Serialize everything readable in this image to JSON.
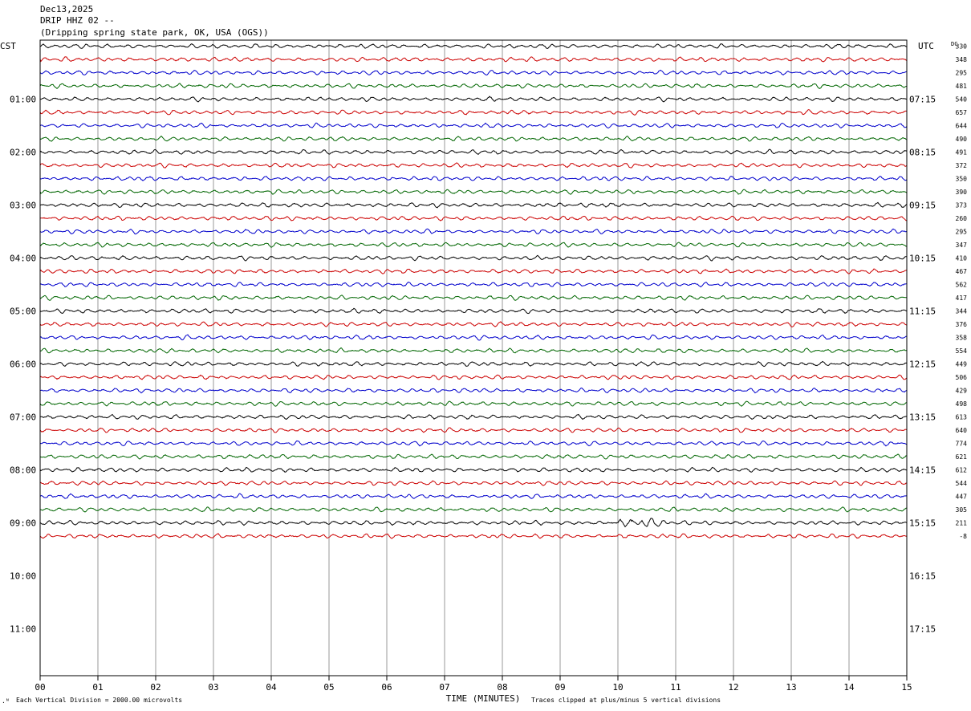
{
  "header": {
    "date": "Dec13,2025",
    "station": "DRIP HHZ 02 --",
    "location": "(Dripping spring state park, OK, USA (OGS))"
  },
  "left_axis_label": "CST",
  "right_axis_label": "UTC",
  "dc_label": "DC",
  "colors": {
    "trace_cycle": [
      "#000000",
      "#cc0000",
      "#0000cc",
      "#006600"
    ],
    "grid": "#999999",
    "frame": "#000000"
  },
  "footer": {
    "vertical_division": "Each Vertical Division = 2000.00 microvolts",
    "x_title": "TIME (MINUTES)",
    "clip_note": "Traces clipped at plus/minus 5 vertical divisions"
  },
  "chart_data": {
    "type": "line",
    "description": "helicorder seismogram, one trace per 15 minutes",
    "xlim": [
      0,
      15
    ],
    "x_ticks": [
      "00",
      "01",
      "02",
      "03",
      "04",
      "05",
      "06",
      "07",
      "08",
      "09",
      "10",
      "11",
      "12",
      "13",
      "14",
      "15"
    ],
    "rows_per_hour": 4,
    "total_rows": 48,
    "traces_recorded": 38,
    "left_hour_labels": [
      "01:00",
      "02:00",
      "03:00",
      "04:00",
      "05:00",
      "06:00",
      "07:00",
      "08:00",
      "09:00",
      "10:00",
      "11:00"
    ],
    "right_hour_labels": [
      "07:15",
      "08:15",
      "09:15",
      "10:15",
      "11:15",
      "12:15",
      "13:15",
      "14:15",
      "15:15",
      "16:15",
      "17:15"
    ],
    "dc_offsets": [
      "330",
      "348",
      "295",
      "481",
      "540",
      "657",
      "644",
      "490",
      "491",
      "372",
      "350",
      "390",
      "373",
      "260",
      "295",
      "347",
      "410",
      "467",
      "562",
      "417",
      "344",
      "376",
      "358",
      "554",
      "449",
      "506",
      "429",
      "498",
      "613",
      "640",
      "774",
      "621",
      "612",
      "544",
      "447",
      "305",
      "211",
      "-8"
    ]
  }
}
